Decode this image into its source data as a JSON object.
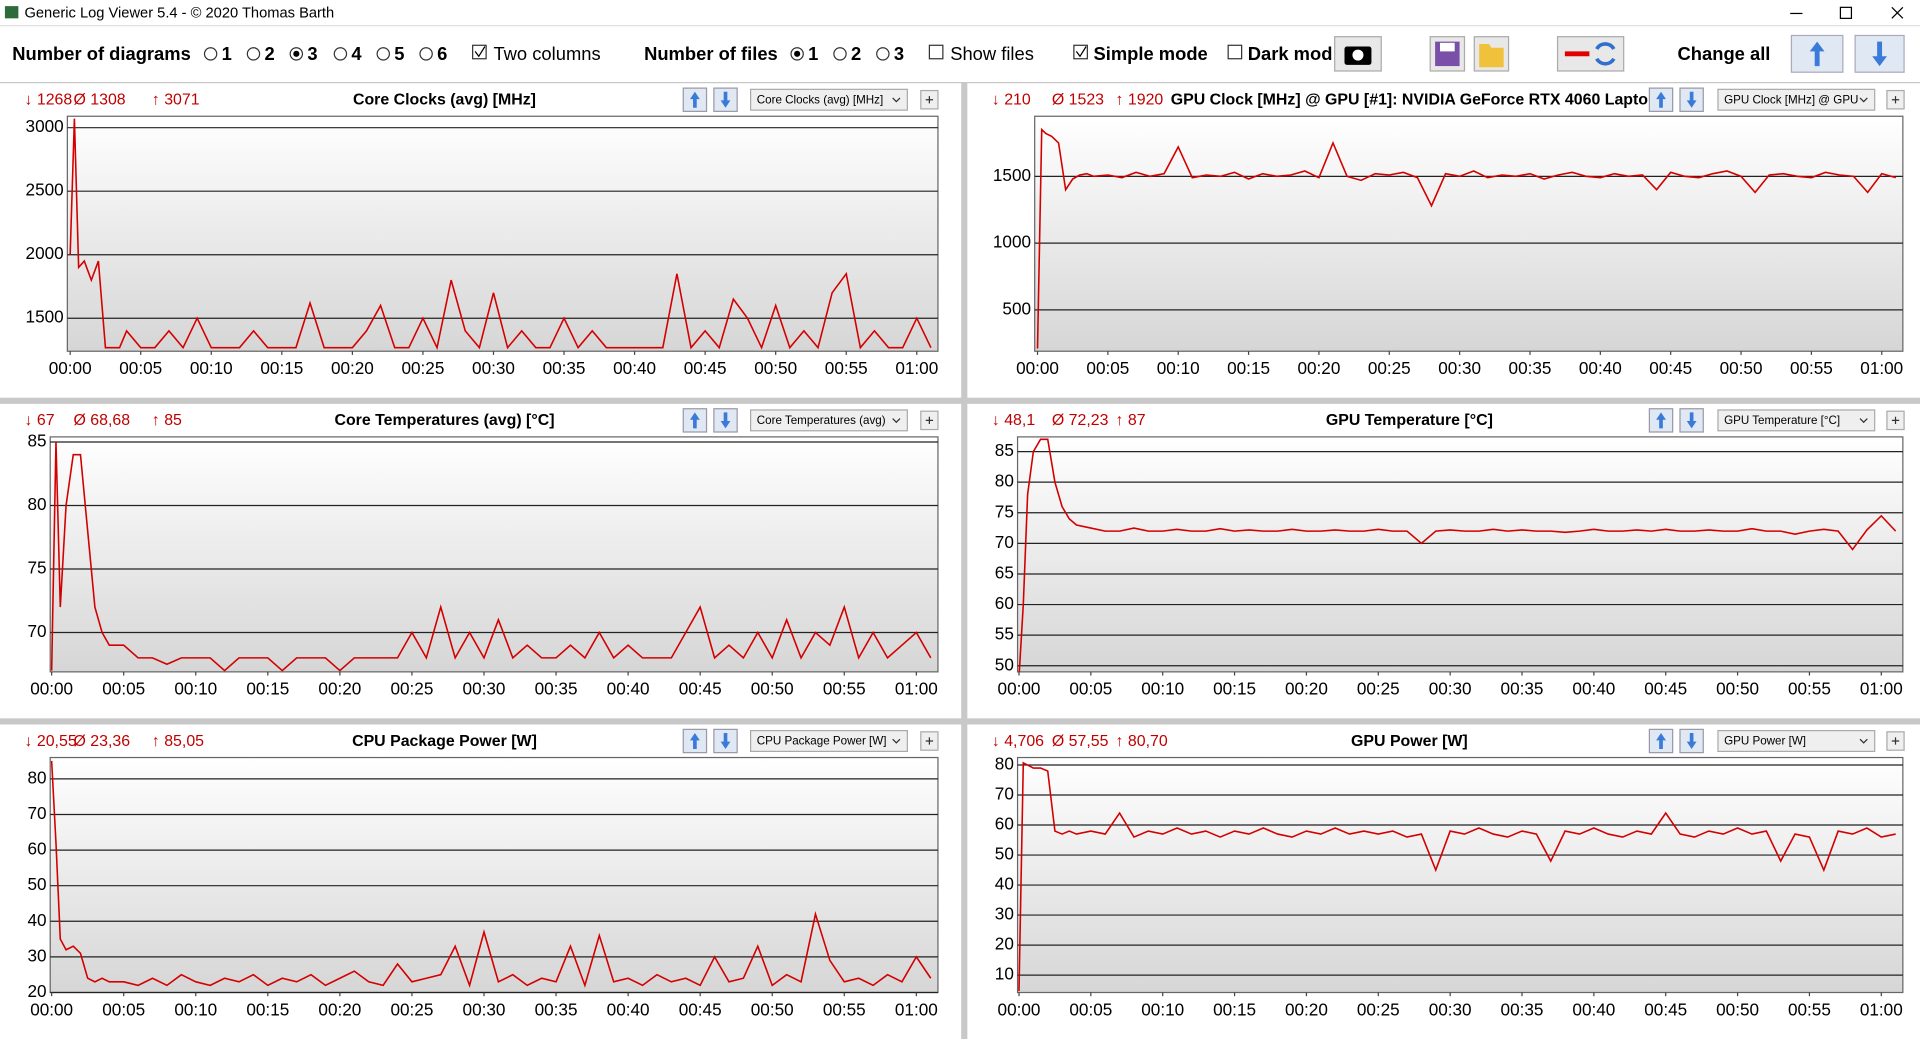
{
  "window": {
    "title": "Generic Log Viewer 5.4 - © 2020 Thomas Barth"
  },
  "toolbar": {
    "diagrams_label": "Number of diagrams",
    "diagram_options": [
      "1",
      "2",
      "3",
      "4",
      "5",
      "6"
    ],
    "two_columns": "Two columns",
    "files_label": "Number of files",
    "file_options": [
      "1",
      "2",
      "3"
    ],
    "show_files": "Show files",
    "simple_mode": "Simple mode",
    "dark_mode": "Dark mod",
    "change_all": "Change all"
  },
  "chart_data": [
    {
      "type": "line",
      "title": "Core Clocks (avg) [MHz]",
      "stats": [
        "↓ 1268",
        "Ø 1308",
        "↑ 3071"
      ],
      "selector": "Core Clocks (avg) [MHz]",
      "color": "#d40000",
      "grid": true,
      "x": [
        0,
        0.3,
        0.6,
        1,
        1.5,
        2,
        2.5,
        3,
        3.5,
        4,
        5,
        6,
        7,
        8,
        9,
        10,
        11,
        12,
        13,
        14,
        15,
        16,
        17,
        18,
        19,
        20,
        21,
        22,
        23,
        24,
        25,
        26,
        27,
        28,
        29,
        30,
        31,
        32,
        33,
        34,
        35,
        36,
        37,
        38,
        39,
        40,
        41,
        42,
        43,
        44,
        45,
        46,
        47,
        48,
        49,
        50,
        51,
        52,
        53,
        54,
        55,
        56,
        57,
        58,
        59,
        60,
        61
      ],
      "values": [
        2000,
        3071,
        1900,
        1950,
        1800,
        1950,
        1268,
        1268,
        1268,
        1400,
        1268,
        1268,
        1400,
        1268,
        1500,
        1268,
        1268,
        1268,
        1400,
        1268,
        1268,
        1268,
        1620,
        1268,
        1268,
        1268,
        1400,
        1600,
        1268,
        1268,
        1500,
        1268,
        1800,
        1400,
        1268,
        1700,
        1268,
        1400,
        1268,
        1268,
        1500,
        1268,
        1400,
        1268,
        1268,
        1268,
        1268,
        1268,
        1850,
        1268,
        1400,
        1268,
        1650,
        1500,
        1268,
        1600,
        1268,
        1400,
        1268,
        1700,
        1850,
        1268,
        1400,
        1268,
        1268,
        1500,
        1268
      ],
      "xlim": [
        -0.2,
        61.5
      ],
      "ylim": [
        1240,
        3090
      ],
      "yticks": [
        1500,
        2000,
        2500,
        3000
      ],
      "xticks": [
        {
          "value": 0,
          "label": "00:00"
        },
        {
          "value": 5,
          "label": "00:05"
        },
        {
          "value": 10,
          "label": "00:10"
        },
        {
          "value": 15,
          "label": "00:15"
        },
        {
          "value": 20,
          "label": "00:20"
        },
        {
          "value": 25,
          "label": "00:25"
        },
        {
          "value": 30,
          "label": "00:30"
        },
        {
          "value": 35,
          "label": "00:35"
        },
        {
          "value": 40,
          "label": "00:40"
        },
        {
          "value": 45,
          "label": "00:45"
        },
        {
          "value": 50,
          "label": "00:50"
        },
        {
          "value": 55,
          "label": "00:55"
        },
        {
          "value": 60,
          "label": "01:00"
        }
      ]
    },
    {
      "type": "line",
      "title": "GPU Clock [MHz] @ GPU [#1]: NVIDIA GeForce RTX 4060 Lapto",
      "stats": [
        "↓ 210",
        "Ø 1523",
        "↑ 1920"
      ],
      "selector": "GPU Clock [MHz] @ GPU",
      "color": "#d40000",
      "grid": true,
      "x": [
        0,
        0.3,
        0.6,
        1,
        1.5,
        2,
        2.5,
        3,
        3.5,
        4,
        5,
        6,
        7,
        8,
        9,
        10,
        11,
        12,
        13,
        14,
        15,
        16,
        17,
        18,
        19,
        20,
        21,
        22,
        23,
        24,
        25,
        26,
        27,
        28,
        29,
        30,
        31,
        32,
        33,
        34,
        35,
        36,
        37,
        38,
        39,
        40,
        41,
        42,
        43,
        44,
        45,
        46,
        47,
        48,
        49,
        50,
        51,
        52,
        53,
        54,
        55,
        56,
        57,
        58,
        59,
        60,
        61
      ],
      "values": [
        210,
        1850,
        1820,
        1800,
        1750,
        1400,
        1480,
        1510,
        1520,
        1500,
        1510,
        1490,
        1530,
        1500,
        1520,
        1720,
        1490,
        1510,
        1500,
        1530,
        1480,
        1520,
        1500,
        1510,
        1540,
        1490,
        1750,
        1500,
        1470,
        1520,
        1510,
        1530,
        1490,
        1280,
        1520,
        1500,
        1540,
        1490,
        1510,
        1500,
        1520,
        1480,
        1510,
        1530,
        1500,
        1490,
        1520,
        1500,
        1510,
        1400,
        1530,
        1500,
        1490,
        1520,
        1540,
        1500,
        1380,
        1510,
        1520,
        1500,
        1490,
        1530,
        1510,
        1500,
        1380,
        1520,
        1490
      ],
      "xlim": [
        -0.2,
        61.5
      ],
      "ylim": [
        190,
        1950
      ],
      "yticks": [
        500,
        1000,
        1500
      ],
      "xticks": [
        {
          "value": 0,
          "label": "00:00"
        },
        {
          "value": 5,
          "label": "00:05"
        },
        {
          "value": 10,
          "label": "00:10"
        },
        {
          "value": 15,
          "label": "00:15"
        },
        {
          "value": 20,
          "label": "00:20"
        },
        {
          "value": 25,
          "label": "00:25"
        },
        {
          "value": 30,
          "label": "00:30"
        },
        {
          "value": 35,
          "label": "00:35"
        },
        {
          "value": 40,
          "label": "00:40"
        },
        {
          "value": 45,
          "label": "00:45"
        },
        {
          "value": 50,
          "label": "00:50"
        },
        {
          "value": 55,
          "label": "00:55"
        },
        {
          "value": 60,
          "label": "01:00"
        }
      ]
    },
    {
      "type": "line",
      "title": "Core Temperatures (avg) [°C]",
      "stats": [
        "↓ 67",
        "Ø 68,68",
        "↑ 85"
      ],
      "selector": "Core Temperatures (avg)",
      "color": "#d40000",
      "grid": true,
      "x": [
        0,
        0.3,
        0.6,
        1,
        1.5,
        2,
        2.5,
        3,
        3.5,
        4,
        5,
        6,
        7,
        8,
        9,
        10,
        11,
        12,
        13,
        14,
        15,
        16,
        17,
        18,
        19,
        20,
        21,
        22,
        23,
        24,
        25,
        26,
        27,
        28,
        29,
        30,
        31,
        32,
        33,
        34,
        35,
        36,
        37,
        38,
        39,
        40,
        41,
        42,
        43,
        44,
        45,
        46,
        47,
        48,
        49,
        50,
        51,
        52,
        53,
        54,
        55,
        56,
        57,
        58,
        59,
        60,
        61
      ],
      "values": [
        67,
        85,
        72,
        80,
        84,
        84,
        78,
        72,
        70,
        69,
        69,
        68,
        68,
        67.5,
        68,
        68,
        68,
        67,
        68,
        68,
        68,
        67,
        68,
        68,
        68,
        67,
        68,
        68,
        68,
        68,
        70,
        68,
        72,
        68,
        70,
        68,
        71,
        68,
        69,
        68,
        68,
        69,
        68,
        70,
        68,
        69,
        68,
        68,
        68,
        70,
        72,
        68,
        69,
        68,
        70,
        68,
        71,
        68,
        70,
        69,
        72,
        68,
        70,
        68,
        69,
        70,
        68
      ],
      "xlim": [
        -0.1,
        61.5
      ],
      "ylim": [
        66.9,
        85.4
      ],
      "yticks": [
        70,
        75,
        80,
        85
      ],
      "xticks": [
        {
          "value": 0,
          "label": "00:00"
        },
        {
          "value": 5,
          "label": "00:05"
        },
        {
          "value": 10,
          "label": "00:10"
        },
        {
          "value": 15,
          "label": "00:15"
        },
        {
          "value": 20,
          "label": "00:20"
        },
        {
          "value": 25,
          "label": "00:25"
        },
        {
          "value": 30,
          "label": "00:30"
        },
        {
          "value": 35,
          "label": "00:35"
        },
        {
          "value": 40,
          "label": "00:40"
        },
        {
          "value": 45,
          "label": "00:45"
        },
        {
          "value": 50,
          "label": "00:50"
        },
        {
          "value": 55,
          "label": "00:55"
        },
        {
          "value": 60,
          "label": "01:00"
        }
      ]
    },
    {
      "type": "line",
      "title": "GPU Temperature [°C]",
      "stats": [
        "↓ 48,1",
        "Ø 72,23",
        "↑ 87"
      ],
      "selector": "GPU Temperature [°C]",
      "color": "#d40000",
      "grid": true,
      "x": [
        0,
        0.3,
        0.6,
        1,
        1.5,
        2,
        2.5,
        3,
        3.5,
        4,
        5,
        6,
        7,
        8,
        9,
        10,
        11,
        12,
        13,
        14,
        15,
        16,
        17,
        18,
        19,
        20,
        21,
        22,
        23,
        24,
        25,
        26,
        27,
        28,
        29,
        30,
        31,
        32,
        33,
        34,
        35,
        36,
        37,
        38,
        39,
        40,
        41,
        42,
        43,
        44,
        45,
        46,
        47,
        48,
        49,
        50,
        51,
        52,
        53,
        54,
        55,
        56,
        57,
        58,
        59,
        60,
        61
      ],
      "values": [
        48.1,
        60,
        78,
        85,
        87,
        87,
        80,
        76,
        74,
        73,
        72.5,
        72,
        72,
        72.5,
        72,
        72,
        72.3,
        72,
        72,
        72.4,
        72,
        72.2,
        72,
        72,
        72.3,
        72,
        72,
        72.2,
        72,
        72,
        72.3,
        72,
        72,
        70,
        72,
        72.2,
        72,
        72,
        72.3,
        72,
        72.2,
        72,
        72,
        71.8,
        72,
        72.3,
        72,
        72,
        72.2,
        72,
        72.3,
        72,
        72,
        72.2,
        72,
        72,
        72.4,
        72,
        72,
        71.5,
        72,
        72.3,
        72,
        69,
        72.2,
        74.5,
        72
      ],
      "xlim": [
        -0.1,
        61.5
      ],
      "ylim": [
        49,
        87.4
      ],
      "yticks": [
        50,
        55,
        60,
        65,
        70,
        75,
        80,
        85
      ],
      "xticks": [
        {
          "value": 0,
          "label": "00:00"
        },
        {
          "value": 5,
          "label": "00:05"
        },
        {
          "value": 10,
          "label": "00:10"
        },
        {
          "value": 15,
          "label": "00:15"
        },
        {
          "value": 20,
          "label": "00:20"
        },
        {
          "value": 25,
          "label": "00:25"
        },
        {
          "value": 30,
          "label": "00:30"
        },
        {
          "value": 35,
          "label": "00:35"
        },
        {
          "value": 40,
          "label": "00:40"
        },
        {
          "value": 45,
          "label": "00:45"
        },
        {
          "value": 50,
          "label": "00:50"
        },
        {
          "value": 55,
          "label": "00:55"
        },
        {
          "value": 60,
          "label": "01:00"
        }
      ]
    },
    {
      "type": "line",
      "title": "CPU Package Power [W]",
      "stats": [
        "↓ 20,55",
        "Ø 23,36",
        "↑ 85,05"
      ],
      "selector": "CPU Package Power [W]",
      "color": "#d40000",
      "grid": true,
      "x": [
        0,
        0.3,
        0.6,
        1,
        1.5,
        2,
        2.5,
        3,
        3.5,
        4,
        5,
        6,
        7,
        8,
        9,
        10,
        11,
        12,
        13,
        14,
        15,
        16,
        17,
        18,
        19,
        20,
        21,
        22,
        23,
        24,
        25,
        26,
        27,
        28,
        29,
        30,
        31,
        32,
        33,
        34,
        35,
        36,
        37,
        38,
        39,
        40,
        41,
        42,
        43,
        44,
        45,
        46,
        47,
        48,
        49,
        50,
        51,
        52,
        53,
        54,
        55,
        56,
        57,
        58,
        59,
        60,
        61
      ],
      "values": [
        85.05,
        62,
        35,
        32,
        33,
        31,
        24,
        23,
        24,
        23,
        23,
        22,
        24,
        22,
        25,
        23,
        22,
        24,
        23,
        25,
        22,
        24,
        23,
        25,
        22,
        24,
        26,
        23,
        22,
        28,
        23,
        24,
        25,
        33,
        22,
        37,
        23,
        25,
        22,
        24,
        23,
        33,
        22,
        36,
        23,
        24,
        22,
        25,
        23,
        24,
        22,
        30,
        23,
        24,
        33,
        22,
        25,
        23,
        42,
        29,
        23,
        24,
        22,
        25,
        23,
        30,
        24
      ],
      "xlim": [
        -0.1,
        61.5
      ],
      "ylim": [
        20,
        86
      ],
      "yticks": [
        20,
        30,
        40,
        50,
        60,
        70,
        80
      ],
      "xticks": [
        {
          "value": 0,
          "label": "00:00"
        },
        {
          "value": 5,
          "label": "00:05"
        },
        {
          "value": 10,
          "label": "00:10"
        },
        {
          "value": 15,
          "label": "00:15"
        },
        {
          "value": 20,
          "label": "00:20"
        },
        {
          "value": 25,
          "label": "00:25"
        },
        {
          "value": 30,
          "label": "00:30"
        },
        {
          "value": 35,
          "label": "00:35"
        },
        {
          "value": 40,
          "label": "00:40"
        },
        {
          "value": 45,
          "label": "00:45"
        },
        {
          "value": 50,
          "label": "00:50"
        },
        {
          "value": 55,
          "label": "00:55"
        },
        {
          "value": 60,
          "label": "01:00"
        }
      ]
    },
    {
      "type": "line",
      "title": "GPU Power [W]",
      "stats": [
        "↓ 4,706",
        "Ø 57,55",
        "↑ 80,70"
      ],
      "selector": "GPU Power [W]",
      "color": "#d40000",
      "grid": true,
      "x": [
        0,
        0.3,
        0.6,
        1,
        1.5,
        2,
        2.5,
        3,
        3.5,
        4,
        5,
        6,
        7,
        8,
        9,
        10,
        11,
        12,
        13,
        14,
        15,
        16,
        17,
        18,
        19,
        20,
        21,
        22,
        23,
        24,
        25,
        26,
        27,
        28,
        29,
        30,
        31,
        32,
        33,
        34,
        35,
        36,
        37,
        38,
        39,
        40,
        41,
        42,
        43,
        44,
        45,
        46,
        47,
        48,
        49,
        50,
        51,
        52,
        53,
        54,
        55,
        56,
        57,
        58,
        59,
        60,
        61
      ],
      "values": [
        4.706,
        80.7,
        80,
        79,
        79,
        78,
        58,
        57,
        58,
        57,
        58,
        57,
        64,
        56,
        58,
        57,
        59,
        57,
        58,
        56,
        58,
        57,
        59,
        57,
        56,
        58,
        57,
        59,
        57,
        58,
        57,
        58,
        56,
        57,
        45,
        58,
        57,
        59,
        57,
        56,
        58,
        57,
        48,
        58,
        57,
        59,
        57,
        56,
        58,
        57,
        64,
        57,
        56,
        58,
        57,
        59,
        57,
        58,
        48,
        57,
        56,
        45,
        58,
        57,
        59,
        56,
        57
      ],
      "xlim": [
        -0.1,
        61.5
      ],
      "ylim": [
        4.2,
        82.5
      ],
      "yticks": [
        10,
        20,
        30,
        40,
        50,
        60,
        70,
        80
      ],
      "xticks": [
        {
          "value": 0,
          "label": "00:00"
        },
        {
          "value": 5,
          "label": "00:05"
        },
        {
          "value": 10,
          "label": "00:10"
        },
        {
          "value": 15,
          "label": "00:15"
        },
        {
          "value": 20,
          "label": "00:20"
        },
        {
          "value": 25,
          "label": "00:25"
        },
        {
          "value": 30,
          "label": "00:30"
        },
        {
          "value": 35,
          "label": "00:35"
        },
        {
          "value": 40,
          "label": "00:40"
        },
        {
          "value": 45,
          "label": "00:45"
        },
        {
          "value": 50,
          "label": "00:50"
        },
        {
          "value": 55,
          "label": "00:55"
        },
        {
          "value": 60,
          "label": "01:00"
        }
      ]
    }
  ]
}
